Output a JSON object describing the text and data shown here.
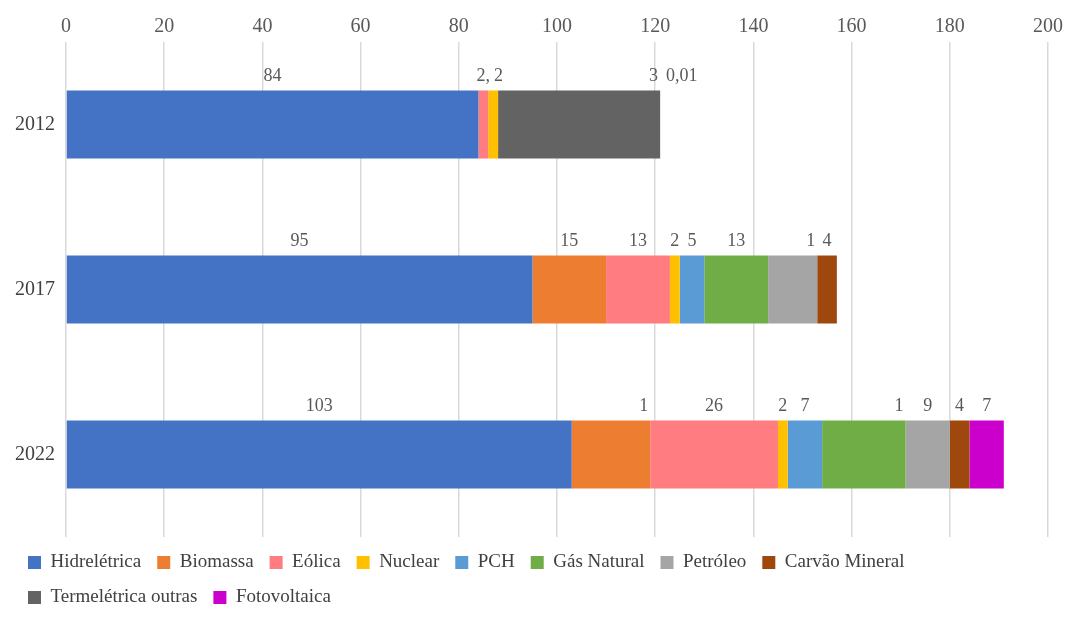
{
  "chart_data": {
    "type": "bar",
    "orientation": "horizontal",
    "stacked": true,
    "categories": [
      "2012",
      "2017",
      "2022"
    ],
    "xlim": [
      0,
      200
    ],
    "xticks": [
      0,
      20,
      40,
      60,
      80,
      100,
      120,
      140,
      160,
      180,
      200
    ],
    "grid": "x",
    "legend": "bottom",
    "series": [
      {
        "name": "Hidrelétrica",
        "color": "#4472c4",
        "values": [
          84,
          95,
          103
        ],
        "value_labels": [
          "84",
          "95",
          "103"
        ]
      },
      {
        "name": "Biomassa",
        "color": "#ed7d31",
        "values": [
          null,
          15,
          16
        ],
        "value_labels": [
          null,
          "15",
          null
        ]
      },
      {
        "name": "Eólica",
        "color": "#ff7c80",
        "values": [
          2,
          13,
          26
        ],
        "value_labels": [
          "2,",
          "13",
          "26"
        ]
      },
      {
        "name": "Nuclear",
        "color": "#ffc000",
        "values": [
          2,
          2,
          2
        ],
        "value_labels": [
          "2",
          "2",
          "2"
        ]
      },
      {
        "name": "PCH",
        "color": "#5b9bd5",
        "values": [
          null,
          5,
          7
        ],
        "value_labels": [
          null,
          "5",
          "7"
        ]
      },
      {
        "name": "Gás Natural",
        "color": "#70ad47",
        "values": [
          null,
          13,
          17
        ],
        "value_labels": [
          null,
          "13",
          null
        ]
      },
      {
        "name": "Petróleo",
        "color": "#a5a5a5",
        "values": [
          null,
          10,
          9
        ],
        "value_labels": [
          null,
          null,
          "9"
        ]
      },
      {
        "name": "Carvão Mineral",
        "color": "#9e480e",
        "values": [
          null,
          4,
          4
        ],
        "value_labels": [
          null,
          "4",
          "4"
        ]
      },
      {
        "name": "Termelétrica outras",
        "color": "#636363",
        "values": [
          33,
          null,
          null
        ],
        "value_labels": [
          null,
          null,
          null
        ]
      },
      {
        "name": "Fotovoltaica",
        "color": "#cc00cc",
        "values": [
          0.01,
          null,
          7
        ],
        "value_labels": [
          "0,01",
          null,
          "7"
        ]
      }
    ],
    "annotations": [
      {
        "text": "3",
        "x": 121,
        "y": "2012"
      },
      {
        "text": "1",
        "x": 153,
        "y": "2017"
      },
      {
        "text": "1",
        "x": 119,
        "y": "2022"
      },
      {
        "text": "1",
        "x": 171,
        "y": "2022"
      }
    ]
  }
}
